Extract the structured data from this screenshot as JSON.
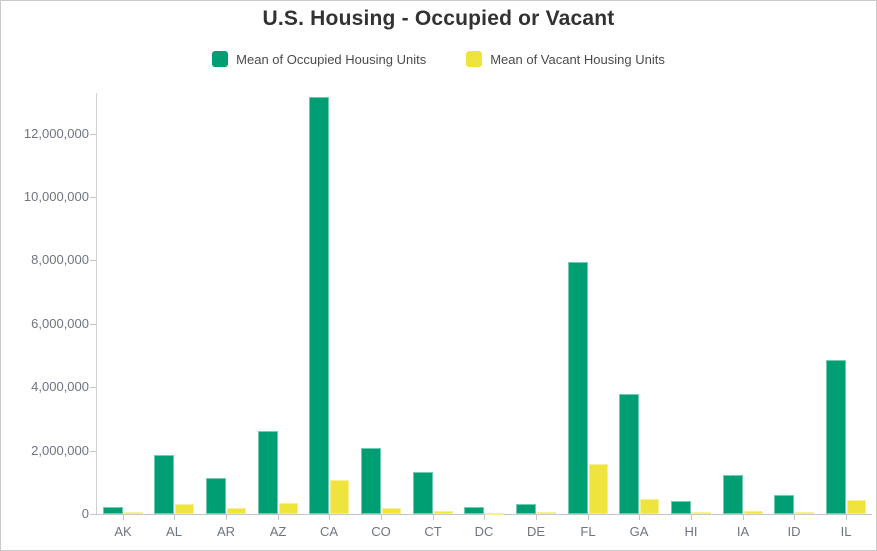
{
  "chart": {
    "title": "U.S. Housing - Occupied or Vacant"
  },
  "chart_data": {
    "type": "bar",
    "title": "U.S. Housing - Occupied or Vacant",
    "categories": [
      "AK",
      "AL",
      "AR",
      "AZ",
      "CA",
      "CO",
      "CT",
      "DC",
      "DE",
      "FL",
      "GA",
      "HI",
      "IA",
      "ID",
      "IL"
    ],
    "series": [
      {
        "name": "Mean of Occupied Housing Units",
        "color": "#009e73",
        "values": [
          220000,
          1850000,
          1150000,
          2610000,
          13140000,
          2070000,
          1340000,
          230000,
          310000,
          7940000,
          3790000,
          400000,
          1220000,
          610000,
          4860000
        ]
      },
      {
        "name": "Mean of Vacant Housing Units",
        "color": "#efe43d",
        "values": [
          55000,
          320000,
          185000,
          340000,
          1080000,
          175000,
          80000,
          30000,
          60000,
          1580000,
          460000,
          65000,
          95000,
          65000,
          430000
        ]
      }
    ],
    "xlabel": "",
    "ylabel": "",
    "ylim": [
      0,
      13350000
    ],
    "yticks": [
      0,
      2000000,
      4000000,
      6000000,
      8000000,
      10000000,
      12000000
    ],
    "ytick_labels": [
      "0",
      "2,000,000",
      "4,000,000",
      "6,000,000",
      "8,000,000",
      "10,000,000",
      "12,000,000"
    ],
    "grid": false,
    "legend_position": "top"
  }
}
